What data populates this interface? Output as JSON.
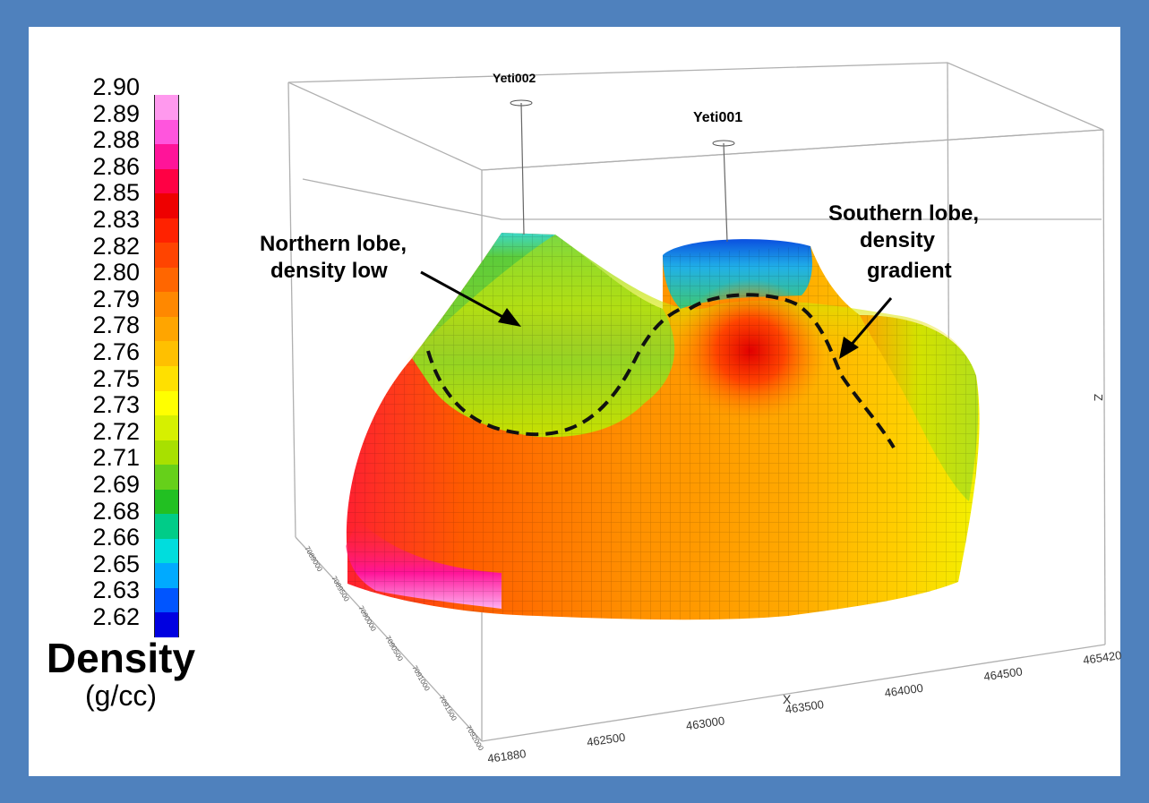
{
  "colorbar": {
    "title": "Density",
    "unit": "(g/cc)",
    "labels": [
      "2.90",
      "2.89",
      "2.88",
      "2.86",
      "2.85",
      "2.83",
      "2.82",
      "2.80",
      "2.79",
      "2.78",
      "2.76",
      "2.75",
      "2.73",
      "2.72",
      "2.71",
      "2.69",
      "2.68",
      "2.66",
      "2.65",
      "2.63",
      "2.62"
    ],
    "colors": [
      "#ff99ee",
      "#ff55dd",
      "#ff1499",
      "#ff0044",
      "#ee0000",
      "#ff2200",
      "#ff4400",
      "#ff6600",
      "#ff8800",
      "#ffa500",
      "#ffc000",
      "#ffe000",
      "#ffff00",
      "#d6f000",
      "#a8e000",
      "#66d01a",
      "#22c022",
      "#00cc88",
      "#00dddd",
      "#00aaff",
      "#0055ff",
      "#0000e0"
    ]
  },
  "wells": {
    "well_1": "Yeti002",
    "well_2": "Yeti001"
  },
  "annotations": {
    "north_line1": "Northern lobe,",
    "north_line2": "density  low",
    "south_line1": "Southern  lobe,",
    "south_line2": "density",
    "south_line3": "gradient"
  },
  "axes": {
    "x_label": "X",
    "z_label": "Z",
    "x_ticks": [
      "461880",
      "462500",
      "463000",
      "463500",
      "464000",
      "464500",
      "465420"
    ],
    "y_ticks": [
      "7089000",
      "7089500",
      "7090000",
      "7090500",
      "7091000",
      "7091500",
      "7092000"
    ]
  },
  "colors": {
    "border": "#4f81bd",
    "box_line": "#b0b0b0"
  }
}
